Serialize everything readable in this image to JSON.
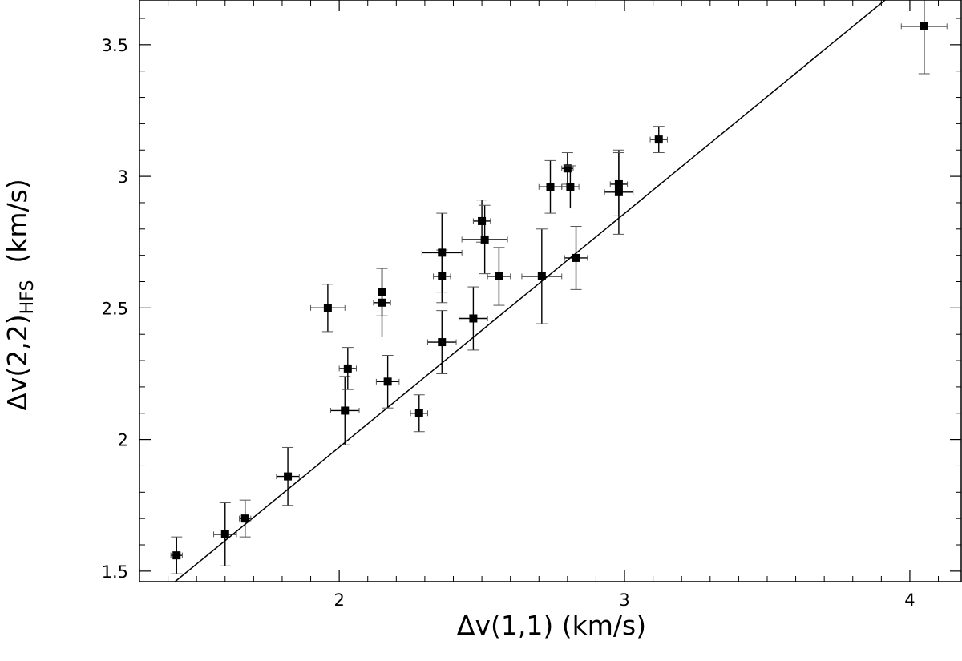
{
  "chart_data": {
    "type": "scatter",
    "title": "",
    "xlabel": "Δv(1,1)  (km/s)",
    "ylabel": {
      "main": "Δv(2,2)",
      "subscript": "HFS",
      "suffix": "  (km/s)"
    },
    "xlim": [
      1.3,
      4.18
    ],
    "ylim": [
      1.46,
      3.67
    ],
    "x_ticks": [
      {
        "value": 2,
        "label": "2"
      },
      {
        "value": 3,
        "label": "3"
      },
      {
        "value": 4,
        "label": "4"
      }
    ],
    "y_ticks": [
      {
        "value": 1.5,
        "label": "1.5"
      },
      {
        "value": 2,
        "label": "2"
      },
      {
        "value": 2.5,
        "label": "2.5"
      },
      {
        "value": 3,
        "label": "3"
      },
      {
        "value": 3.5,
        "label": "3.5"
      }
    ],
    "x_minor_step": 0.1,
    "y_minor_step": 0.1,
    "grid": false,
    "fit_line": {
      "slope": 0.888,
      "intercept": 0.195
    },
    "points": [
      {
        "x": 1.43,
        "y": 1.56,
        "xerr": 0.02,
        "yerr": 0.07
      },
      {
        "x": 1.6,
        "y": 1.64,
        "xerr": 0.04,
        "yerr": 0.12
      },
      {
        "x": 1.67,
        "y": 1.7,
        "xerr": 0.02,
        "yerr": 0.07
      },
      {
        "x": 1.82,
        "y": 1.86,
        "xerr": 0.04,
        "yerr": 0.11
      },
      {
        "x": 1.96,
        "y": 2.5,
        "xerr": 0.06,
        "yerr": 0.09
      },
      {
        "x": 2.02,
        "y": 2.11,
        "xerr": 0.05,
        "yerr": 0.13
      },
      {
        "x": 2.03,
        "y": 2.27,
        "xerr": 0.03,
        "yerr": 0.08
      },
      {
        "x": 2.15,
        "y": 2.52,
        "xerr": 0.03,
        "yerr": 0.13
      },
      {
        "x": 2.15,
        "y": 2.56,
        "xerr": 0.01,
        "yerr": 0.09
      },
      {
        "x": 2.17,
        "y": 2.22,
        "xerr": 0.04,
        "yerr": 0.1
      },
      {
        "x": 2.28,
        "y": 2.1,
        "xerr": 0.03,
        "yerr": 0.07
      },
      {
        "x": 2.36,
        "y": 2.37,
        "xerr": 0.05,
        "yerr": 0.12
      },
      {
        "x": 2.36,
        "y": 2.62,
        "xerr": 0.03,
        "yerr": 0.1
      },
      {
        "x": 2.36,
        "y": 2.71,
        "xerr": 0.07,
        "yerr": 0.15
      },
      {
        "x": 2.47,
        "y": 2.46,
        "xerr": 0.05,
        "yerr": 0.12
      },
      {
        "x": 2.5,
        "y": 2.83,
        "xerr": 0.03,
        "yerr": 0.08
      },
      {
        "x": 2.51,
        "y": 2.76,
        "xerr": 0.08,
        "yerr": 0.13
      },
      {
        "x": 2.56,
        "y": 2.62,
        "xerr": 0.04,
        "yerr": 0.11
      },
      {
        "x": 2.71,
        "y": 2.62,
        "xerr": 0.07,
        "yerr": 0.18
      },
      {
        "x": 2.74,
        "y": 2.96,
        "xerr": 0.04,
        "yerr": 0.1
      },
      {
        "x": 2.8,
        "y": 3.03,
        "xerr": 0.02,
        "yerr": 0.06
      },
      {
        "x": 2.81,
        "y": 2.96,
        "xerr": 0.03,
        "yerr": 0.08
      },
      {
        "x": 2.83,
        "y": 2.69,
        "xerr": 0.04,
        "yerr": 0.12
      },
      {
        "x": 2.98,
        "y": 2.94,
        "xerr": 0.05,
        "yerr": 0.16
      },
      {
        "x": 2.98,
        "y": 2.97,
        "xerr": 0.03,
        "yerr": 0.12
      },
      {
        "x": 3.12,
        "y": 3.14,
        "xerr": 0.03,
        "yerr": 0.05
      },
      {
        "x": 4.05,
        "y": 3.57,
        "xerr": 0.08,
        "yerr": 0.18
      }
    ]
  }
}
